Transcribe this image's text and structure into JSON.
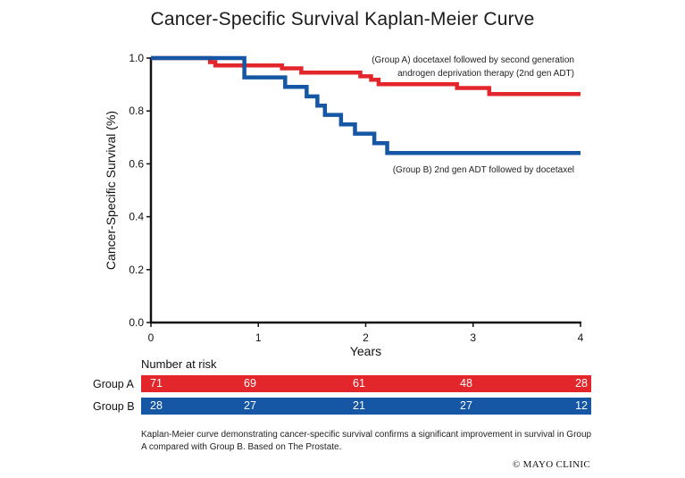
{
  "chart_data": {
    "type": "line",
    "title": "Cancer-Specific Survival Kaplan-Meier Curve",
    "xlabel": "Years",
    "ylabel": "Cancer-Specific Survival (%)",
    "xlim": [
      0,
      4
    ],
    "ylim": [
      0,
      1
    ],
    "xticks": [
      "0",
      "1",
      "2",
      "3",
      "4"
    ],
    "yticks": [
      "0.0",
      "0.2",
      "0.4",
      "0.6",
      "0.8",
      "1.0"
    ],
    "grid": false,
    "series": [
      {
        "name": "(Group A) docetaxel followed by second generation androgen deprivation therapy (2nd gen ADT)",
        "color": "#e3262b",
        "x": [
          0,
          0.55,
          0.6,
          1.0,
          1.22,
          1.4,
          1.95,
          2.05,
          2.12,
          2.85,
          3.15,
          4.0
        ],
        "y": [
          1.0,
          0.985,
          0.972,
          0.972,
          0.961,
          0.945,
          0.931,
          0.918,
          0.901,
          0.887,
          0.864,
          0.864
        ]
      },
      {
        "name": "(Group B) 2nd gen ADT followed by docetaxel",
        "color": "#1557a5",
        "x": [
          0,
          0.87,
          1.25,
          1.45,
          1.55,
          1.62,
          1.77,
          1.9,
          2.08,
          2.2,
          4.0
        ],
        "y": [
          1.0,
          0.927,
          0.891,
          0.855,
          0.82,
          0.785,
          0.749,
          0.714,
          0.678,
          0.641,
          0.641
        ]
      }
    ],
    "annotation_a_lines": [
      "(Group A) docetaxel followed by second generation",
      "androgen deprivation therapy (2nd gen ADT)"
    ],
    "annotation_b": "(Group B) 2nd gen ADT followed by docetaxel"
  },
  "risk_table": {
    "heading": "Number at risk",
    "rows": [
      {
        "label": "Group A",
        "color": "#e3262b",
        "values": [
          "71",
          "69",
          "61",
          "48",
          "28"
        ]
      },
      {
        "label": "Group B",
        "color": "#1557a5",
        "values": [
          "28",
          "27",
          "21",
          "27",
          "12"
        ]
      }
    ]
  },
  "caption": "Kaplan-Meier curve demonstrating cancer-specific survival confirms a significant improvement in survival in Group A compared with Group B. Based on The Prostate.",
  "credit": "© MAYO CLINIC"
}
